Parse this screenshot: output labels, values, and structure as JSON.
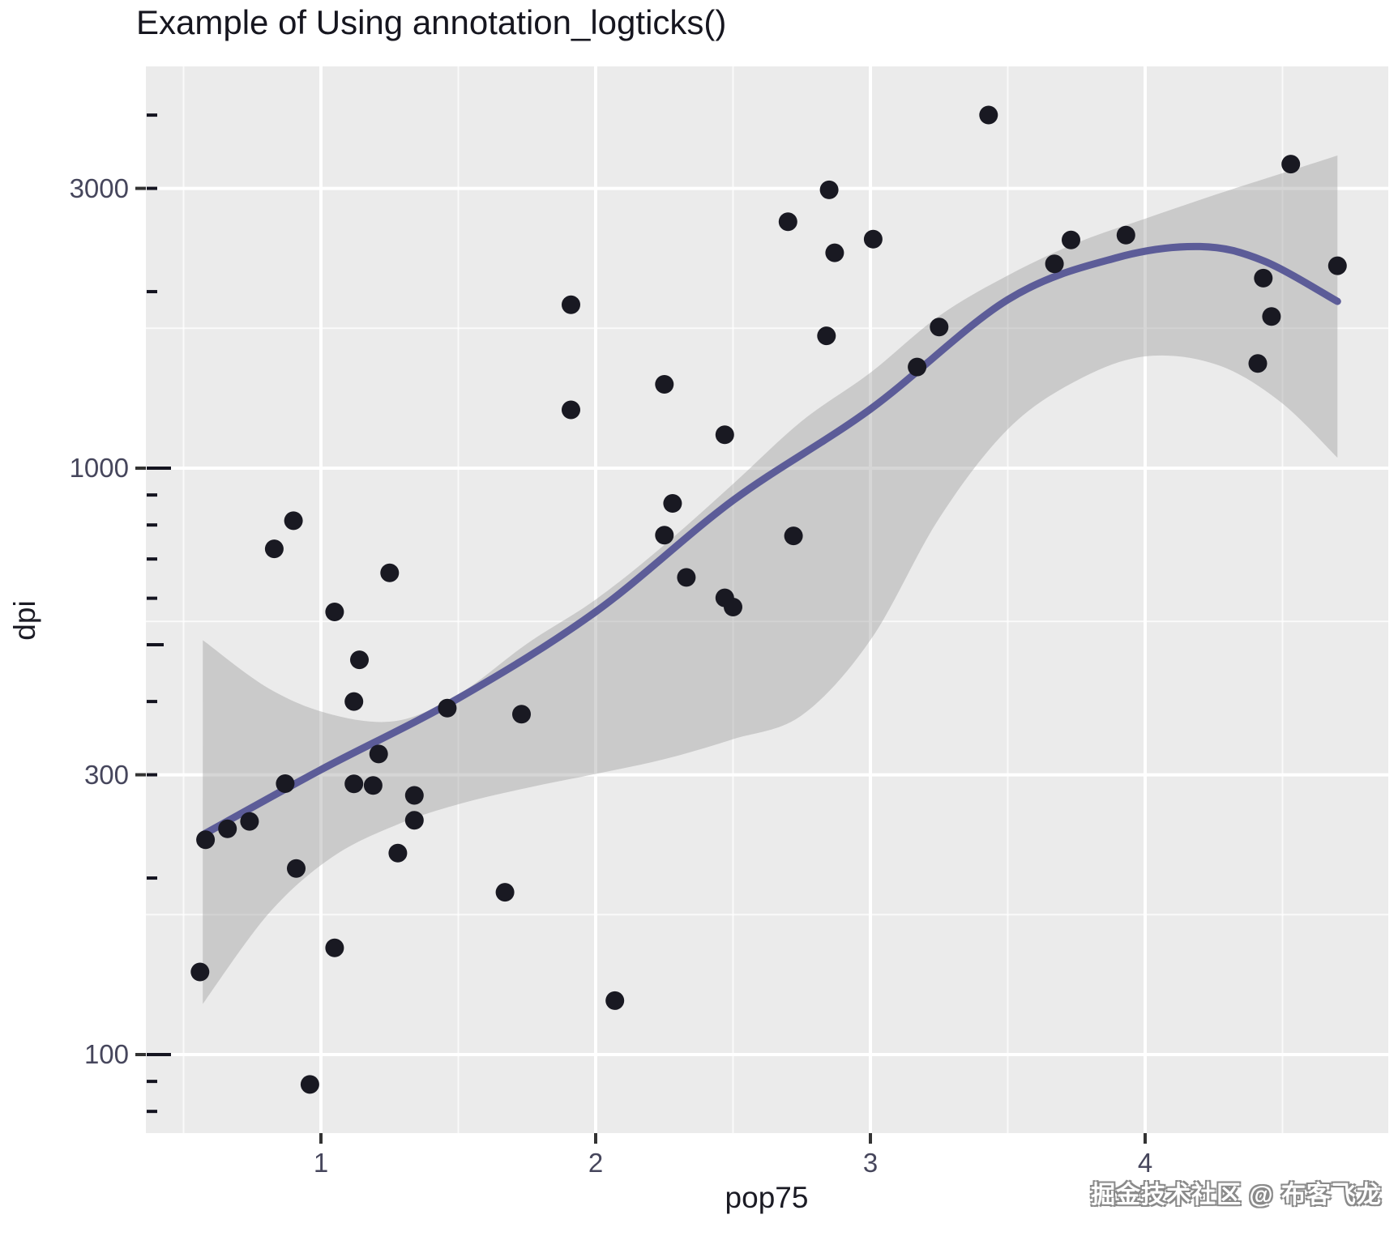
{
  "title": "Example of Using annotation_logticks()",
  "watermark": "掘金技术社区 @ 布客飞龙",
  "colors": {
    "panel_background": "#ebebeb",
    "grid_major": "#ffffff",
    "grid_minor": "#ffffff",
    "point": "#191922",
    "smooth_line": "#585896",
    "ci_band": "#999999",
    "ci_band_alpha": 0.4,
    "logtick": "#141420",
    "axis_tick": "#333333",
    "tick_label": "#46465c",
    "axis_title": "#1b1b24",
    "title": "#16161f"
  },
  "chart_data": {
    "type": "scatter",
    "title": "Example of Using annotation_logticks()",
    "xlabel": "pop75",
    "ylabel": "dpi",
    "legend": "none",
    "grid": "on",
    "x_axis": {
      "scale": "linear",
      "breaks": [
        1,
        2,
        3,
        4
      ],
      "labels": [
        "1",
        "2",
        "3",
        "4"
      ],
      "minor_breaks": [
        0.5,
        1.5,
        2.5,
        3.5,
        4.5
      ],
      "range": [
        0.35,
        4.91
      ]
    },
    "y_axis": {
      "scale": "log10",
      "breaks": [
        100,
        300,
        1000,
        3000
      ],
      "labels": [
        "100",
        "300",
        "1000",
        "3000"
      ],
      "minor_breaks": [
        173.2,
        547.7,
        1732.1
      ],
      "range": [
        73,
        4845
      ],
      "annotation_logticks_side": "left",
      "logticks_long": [
        100,
        1000
      ],
      "logticks_mid": [
        500
      ],
      "logticks_short": [
        80,
        90,
        200,
        300,
        400,
        600,
        700,
        800,
        900,
        2000,
        3000,
        4000
      ]
    },
    "points": [
      [
        2.87,
        2329.68
      ],
      [
        4.41,
        1507.99
      ],
      [
        4.43,
        2108.47
      ],
      [
        1.67,
        189.13
      ],
      [
        0.83,
        728.47
      ],
      [
        2.85,
        2982.88
      ],
      [
        1.25,
        662.86
      ],
      [
        1.12,
        289.52
      ],
      [
        1.34,
        276.65
      ],
      [
        1.14,
        471.24
      ],
      [
        3.93,
        2496.53
      ],
      [
        1.19,
        287.77
      ],
      [
        2.84,
        1681.25
      ],
      [
        4.7,
        2213.82
      ],
      [
        3.01,
        2457.12
      ],
      [
        2.28,
        870.85
      ],
      [
        0.87,
        289.71
      ],
      [
        0.58,
        232.44
      ],
      [
        1.91,
        1900.1
      ],
      [
        0.96,
        88.94
      ],
      [
        2.47,
        1139.95
      ],
      [
        2.25,
        1390.0
      ],
      [
        1.91,
        1257.28
      ],
      [
        0.91,
        207.68
      ],
      [
        3.73,
        2449.39
      ],
      [
        2.47,
        601.05
      ],
      [
        3.67,
        2231.03
      ],
      [
        3.25,
        1740.7
      ],
      [
        3.17,
        1487.52
      ],
      [
        1.21,
        325.54
      ],
      [
        1.05,
        568.56
      ],
      [
        1.28,
        220.56
      ],
      [
        1.12,
        400.06
      ],
      [
        1.05,
        152.01
      ],
      [
        2.5,
        579.51
      ],
      [
        2.33,
        651.11
      ],
      [
        1.34,
        250.96
      ],
      [
        2.25,
        768.79
      ],
      [
        4.53,
        3300.0
      ],
      [
        2.7,
        2630.96
      ],
      [
        1.46,
        389.66
      ],
      [
        0.74,
        249.87
      ],
      [
        4.46,
        1813.93
      ],
      [
        3.43,
        4001.89
      ],
      [
        0.9,
        813.39
      ],
      [
        0.56,
        138.33
      ],
      [
        1.73,
        380.47
      ],
      [
        2.72,
        766.54
      ],
      [
        2.07,
        123.58
      ],
      [
        0.66,
        242.69
      ]
    ],
    "smooth": {
      "method": "loess",
      "line": [
        [
          0.57,
          237
        ],
        [
          1.0,
          306
        ],
        [
          1.5,
          405
        ],
        [
          2.0,
          569
        ],
        [
          2.5,
          881
        ],
        [
          3.0,
          1261
        ],
        [
          3.5,
          1938
        ],
        [
          3.9,
          2287
        ],
        [
          4.2,
          2387
        ],
        [
          4.43,
          2258
        ],
        [
          4.7,
          1925
        ]
      ],
      "ci_upper": [
        [
          0.57,
          509
        ],
        [
          0.81,
          421
        ],
        [
          1.04,
          380
        ],
        [
          1.28,
          371
        ],
        [
          1.51,
          414
        ],
        [
          1.75,
          502
        ],
        [
          2.0,
          597
        ],
        [
          2.25,
          740
        ],
        [
          2.5,
          940
        ],
        [
          2.75,
          1203
        ],
        [
          3.0,
          1455
        ],
        [
          3.25,
          1818
        ],
        [
          3.5,
          2131
        ],
        [
          3.75,
          2421
        ],
        [
          4.0,
          2663
        ],
        [
          4.26,
          2931
        ],
        [
          4.49,
          3173
        ],
        [
          4.7,
          3413
        ]
      ],
      "ci_lower": [
        [
          0.57,
          122
        ],
        [
          0.81,
          174
        ],
        [
          1.04,
          217
        ],
        [
          1.28,
          247
        ],
        [
          1.51,
          268
        ],
        [
          1.75,
          285
        ],
        [
          2.0,
          301
        ],
        [
          2.25,
          319
        ],
        [
          2.5,
          345
        ],
        [
          2.75,
          379
        ],
        [
          3.0,
          509
        ],
        [
          3.25,
          821
        ],
        [
          3.5,
          1165
        ],
        [
          3.75,
          1410
        ],
        [
          4.0,
          1551
        ],
        [
          4.26,
          1502
        ],
        [
          4.49,
          1300
        ],
        [
          4.7,
          1042
        ]
      ]
    }
  }
}
